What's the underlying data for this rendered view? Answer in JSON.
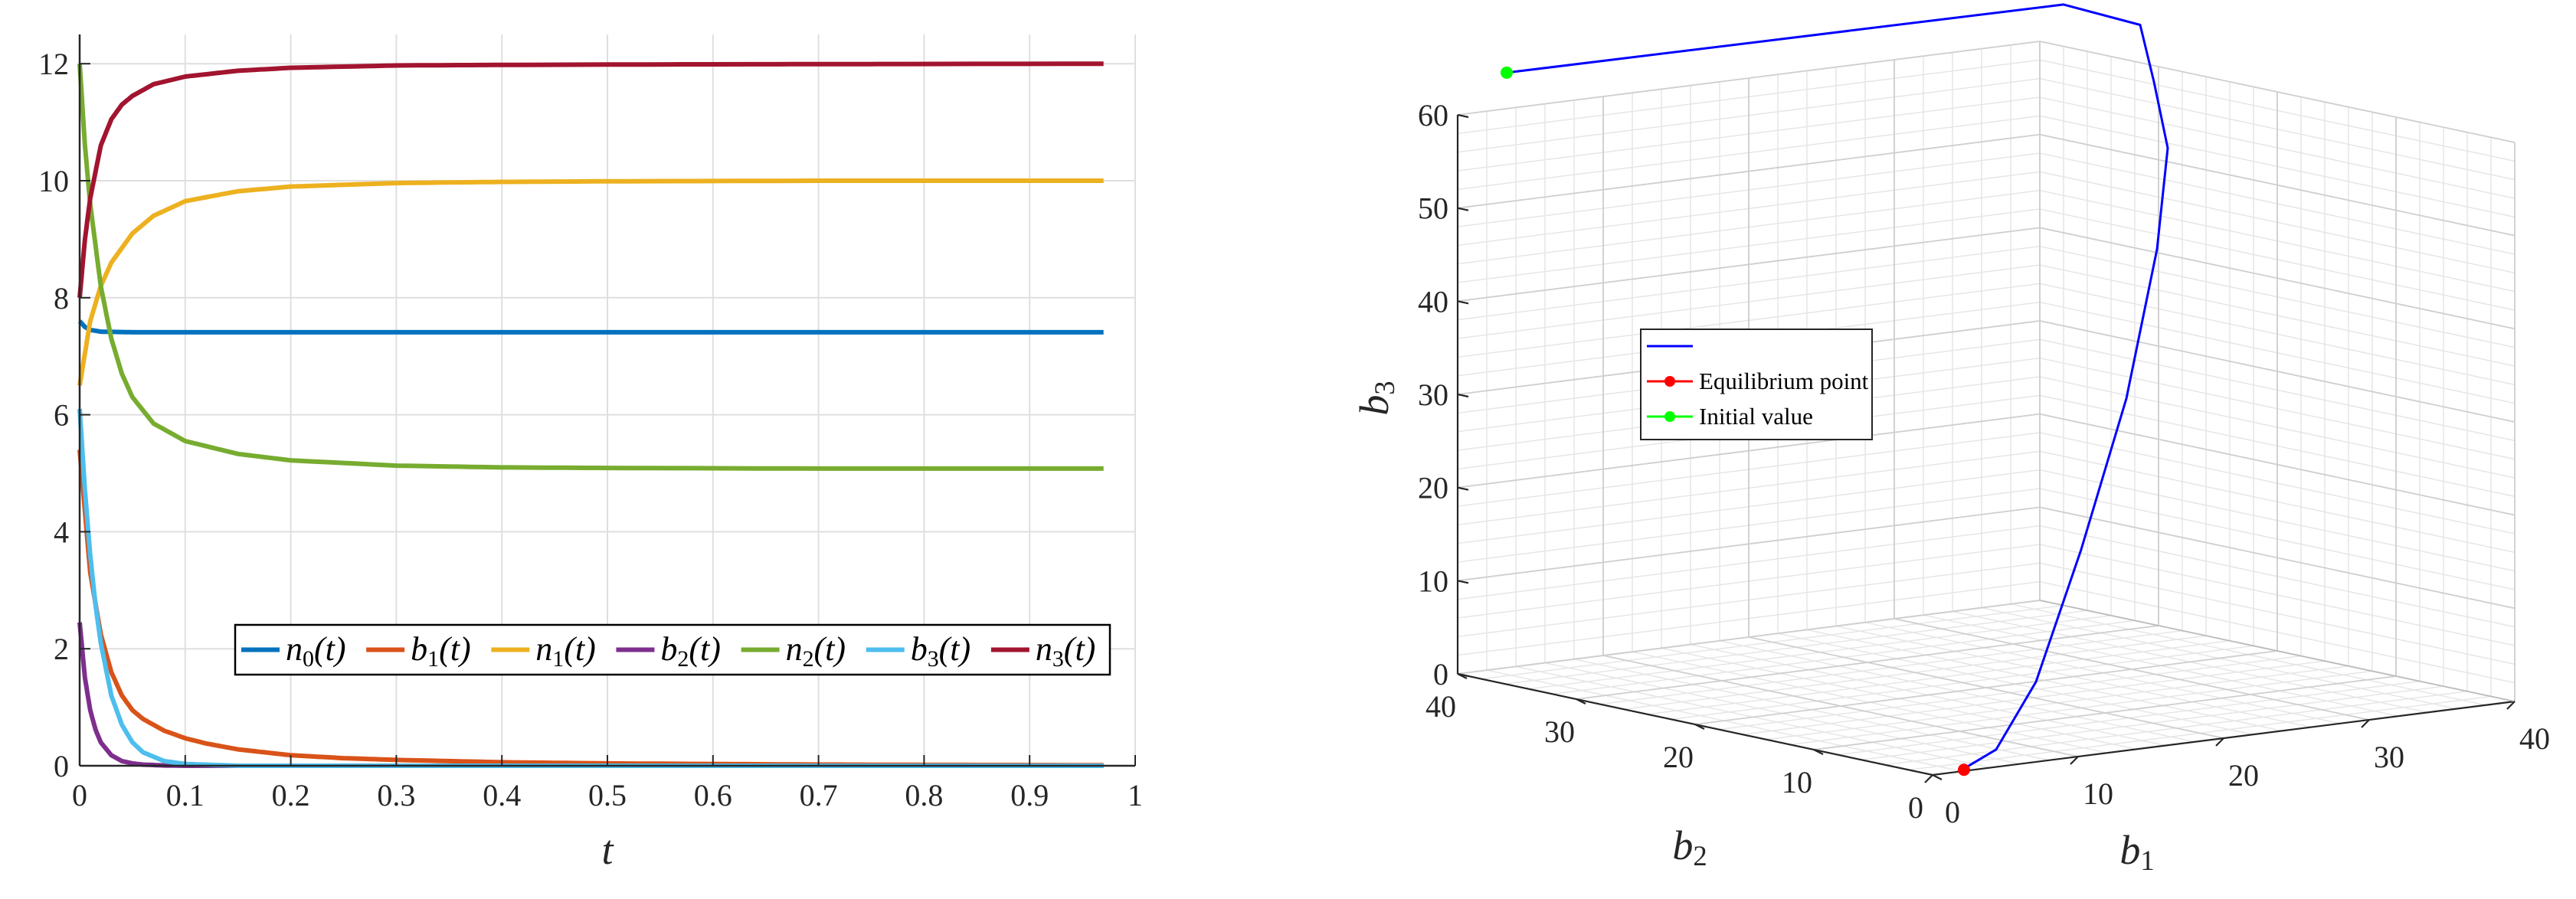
{
  "chart_data": [
    {
      "type": "line",
      "title": "",
      "xlabel": "t",
      "ylabel": "",
      "xlim": [
        0,
        1
      ],
      "ylim": [
        0,
        12.5
      ],
      "xticks": [
        "0",
        "0.1",
        "0.2",
        "0.3",
        "0.4",
        "0.5",
        "0.6",
        "0.7",
        "0.8",
        "0.9",
        "1"
      ],
      "yticks": [
        "0",
        "2",
        "4",
        "6",
        "8",
        "10",
        "12"
      ],
      "grid": true,
      "legend_position": "lower-right",
      "legend_columns": 7,
      "series": [
        {
          "name": "n_0(t)",
          "label_base": "n",
          "label_sub": "0",
          "label_suffix": "(t)",
          "color": "#0072bd",
          "x": [
            0,
            0.005,
            0.01,
            0.02,
            0.05,
            0.1,
            0.3,
            0.6,
            0.97
          ],
          "y": [
            7.6,
            7.5,
            7.45,
            7.42,
            7.41,
            7.41,
            7.41,
            7.41,
            7.41
          ]
        },
        {
          "name": "b_1(t)",
          "label_base": "b",
          "label_sub": "1",
          "label_suffix": "(t)",
          "color": "#d95319",
          "x": [
            0,
            0.01,
            0.02,
            0.03,
            0.04,
            0.05,
            0.06,
            0.08,
            0.1,
            0.12,
            0.15,
            0.2,
            0.25,
            0.3,
            0.4,
            0.5,
            0.6,
            0.7,
            0.8,
            0.97
          ],
          "y": [
            5.4,
            3.3,
            2.25,
            1.6,
            1.2,
            0.95,
            0.8,
            0.6,
            0.47,
            0.38,
            0.28,
            0.18,
            0.13,
            0.1,
            0.06,
            0.04,
            0.03,
            0.02,
            0.015,
            0.01
          ]
        },
        {
          "name": "n_1(t)",
          "label_base": "n",
          "label_sub": "1",
          "label_suffix": "(t)",
          "color": "#edb120",
          "x": [
            0,
            0.01,
            0.02,
            0.03,
            0.05,
            0.07,
            0.1,
            0.15,
            0.2,
            0.3,
            0.4,
            0.5,
            0.7,
            0.97
          ],
          "y": [
            6.5,
            7.6,
            8.2,
            8.6,
            9.1,
            9.4,
            9.65,
            9.82,
            9.9,
            9.96,
            9.98,
            9.99,
            10.0,
            10.0
          ]
        },
        {
          "name": "b_2(t)",
          "label_base": "b",
          "label_sub": "2",
          "label_suffix": "(t)",
          "color": "#7e2f8e",
          "x": [
            0,
            0.005,
            0.01,
            0.015,
            0.02,
            0.03,
            0.04,
            0.05,
            0.06,
            0.08,
            0.1,
            0.3,
            0.6,
            0.97
          ],
          "y": [
            2.45,
            1.5,
            0.95,
            0.62,
            0.4,
            0.18,
            0.08,
            0.04,
            0.02,
            0.005,
            0.0,
            0.0,
            0.0,
            0.0
          ]
        },
        {
          "name": "n_2(t)",
          "label_base": "n",
          "label_sub": "2",
          "label_suffix": "(t)",
          "color": "#77ac30",
          "x": [
            0,
            0.005,
            0.01,
            0.02,
            0.03,
            0.04,
            0.05,
            0.07,
            0.1,
            0.15,
            0.2,
            0.3,
            0.4,
            0.5,
            0.7,
            0.97
          ],
          "y": [
            12.0,
            10.6,
            9.6,
            8.2,
            7.3,
            6.7,
            6.3,
            5.85,
            5.55,
            5.33,
            5.22,
            5.13,
            5.1,
            5.09,
            5.08,
            5.08
          ]
        },
        {
          "name": "b_3(t)",
          "label_base": "b",
          "label_sub": "3",
          "label_suffix": "(t)",
          "color": "#4dbeee",
          "x": [
            0,
            0.005,
            0.01,
            0.015,
            0.02,
            0.03,
            0.04,
            0.05,
            0.06,
            0.08,
            0.1,
            0.15,
            0.3,
            0.6,
            0.97
          ],
          "y": [
            6.1,
            4.7,
            3.6,
            2.75,
            2.1,
            1.2,
            0.7,
            0.4,
            0.23,
            0.08,
            0.03,
            0.0,
            0.0,
            0.0,
            0.0
          ]
        },
        {
          "name": "n_3(t)",
          "label_base": "n",
          "label_sub": "3",
          "label_suffix": "(t)",
          "color": "#a2142f",
          "x": [
            0,
            0.005,
            0.01,
            0.02,
            0.03,
            0.04,
            0.05,
            0.07,
            0.1,
            0.15,
            0.2,
            0.3,
            0.4,
            0.6,
            0.97
          ],
          "y": [
            8.0,
            9.0,
            9.7,
            10.6,
            11.05,
            11.3,
            11.45,
            11.65,
            11.78,
            11.88,
            11.93,
            11.97,
            11.98,
            11.99,
            12.0
          ]
        }
      ]
    },
    {
      "type": "line3d",
      "title": "",
      "xlabel": "b_1",
      "ylabel": "b_2",
      "zlabel": "b_3",
      "xlabel_base": "b",
      "xlabel_sub": "1",
      "ylabel_base": "b",
      "ylabel_sub": "2",
      "zlabel_base": "b",
      "zlabel_sub": "3",
      "xlim": [
        0,
        40
      ],
      "ylim": [
        0,
        40
      ],
      "zlim": [
        0,
        60
      ],
      "xticks": [
        "0",
        "10",
        "20",
        "30",
        "40"
      ],
      "yticks": [
        "0",
        "10",
        "20",
        "30",
        "40"
      ],
      "zticks": [
        "0",
        "10",
        "20",
        "30",
        "40",
        "50",
        "60"
      ],
      "grid": true,
      "legend_position": "center-left",
      "legend_entries": [
        "",
        "Equilibrium point",
        "Initial value"
      ],
      "line_color": "#0000ff",
      "equilibrium_color": "#ff0000",
      "initial_color": "#00ff00",
      "trajectory": [
        [
          5,
          42,
          63
        ],
        [
          40,
          38,
          64.5
        ],
        [
          42,
          34,
          63
        ],
        [
          40.5,
          31,
          58
        ],
        [
          39,
          28,
          52
        ],
        [
          35,
          24,
          43
        ],
        [
          28,
          18,
          30
        ],
        [
          20,
          12,
          17
        ],
        [
          12,
          6,
          6
        ],
        [
          6,
          2,
          1
        ],
        [
          2.5,
          0.5,
          0
        ]
      ],
      "equilibrium_point": [
        2.4,
        0.3,
        0
      ],
      "initial_point": [
        5,
        42,
        63
      ]
    }
  ]
}
